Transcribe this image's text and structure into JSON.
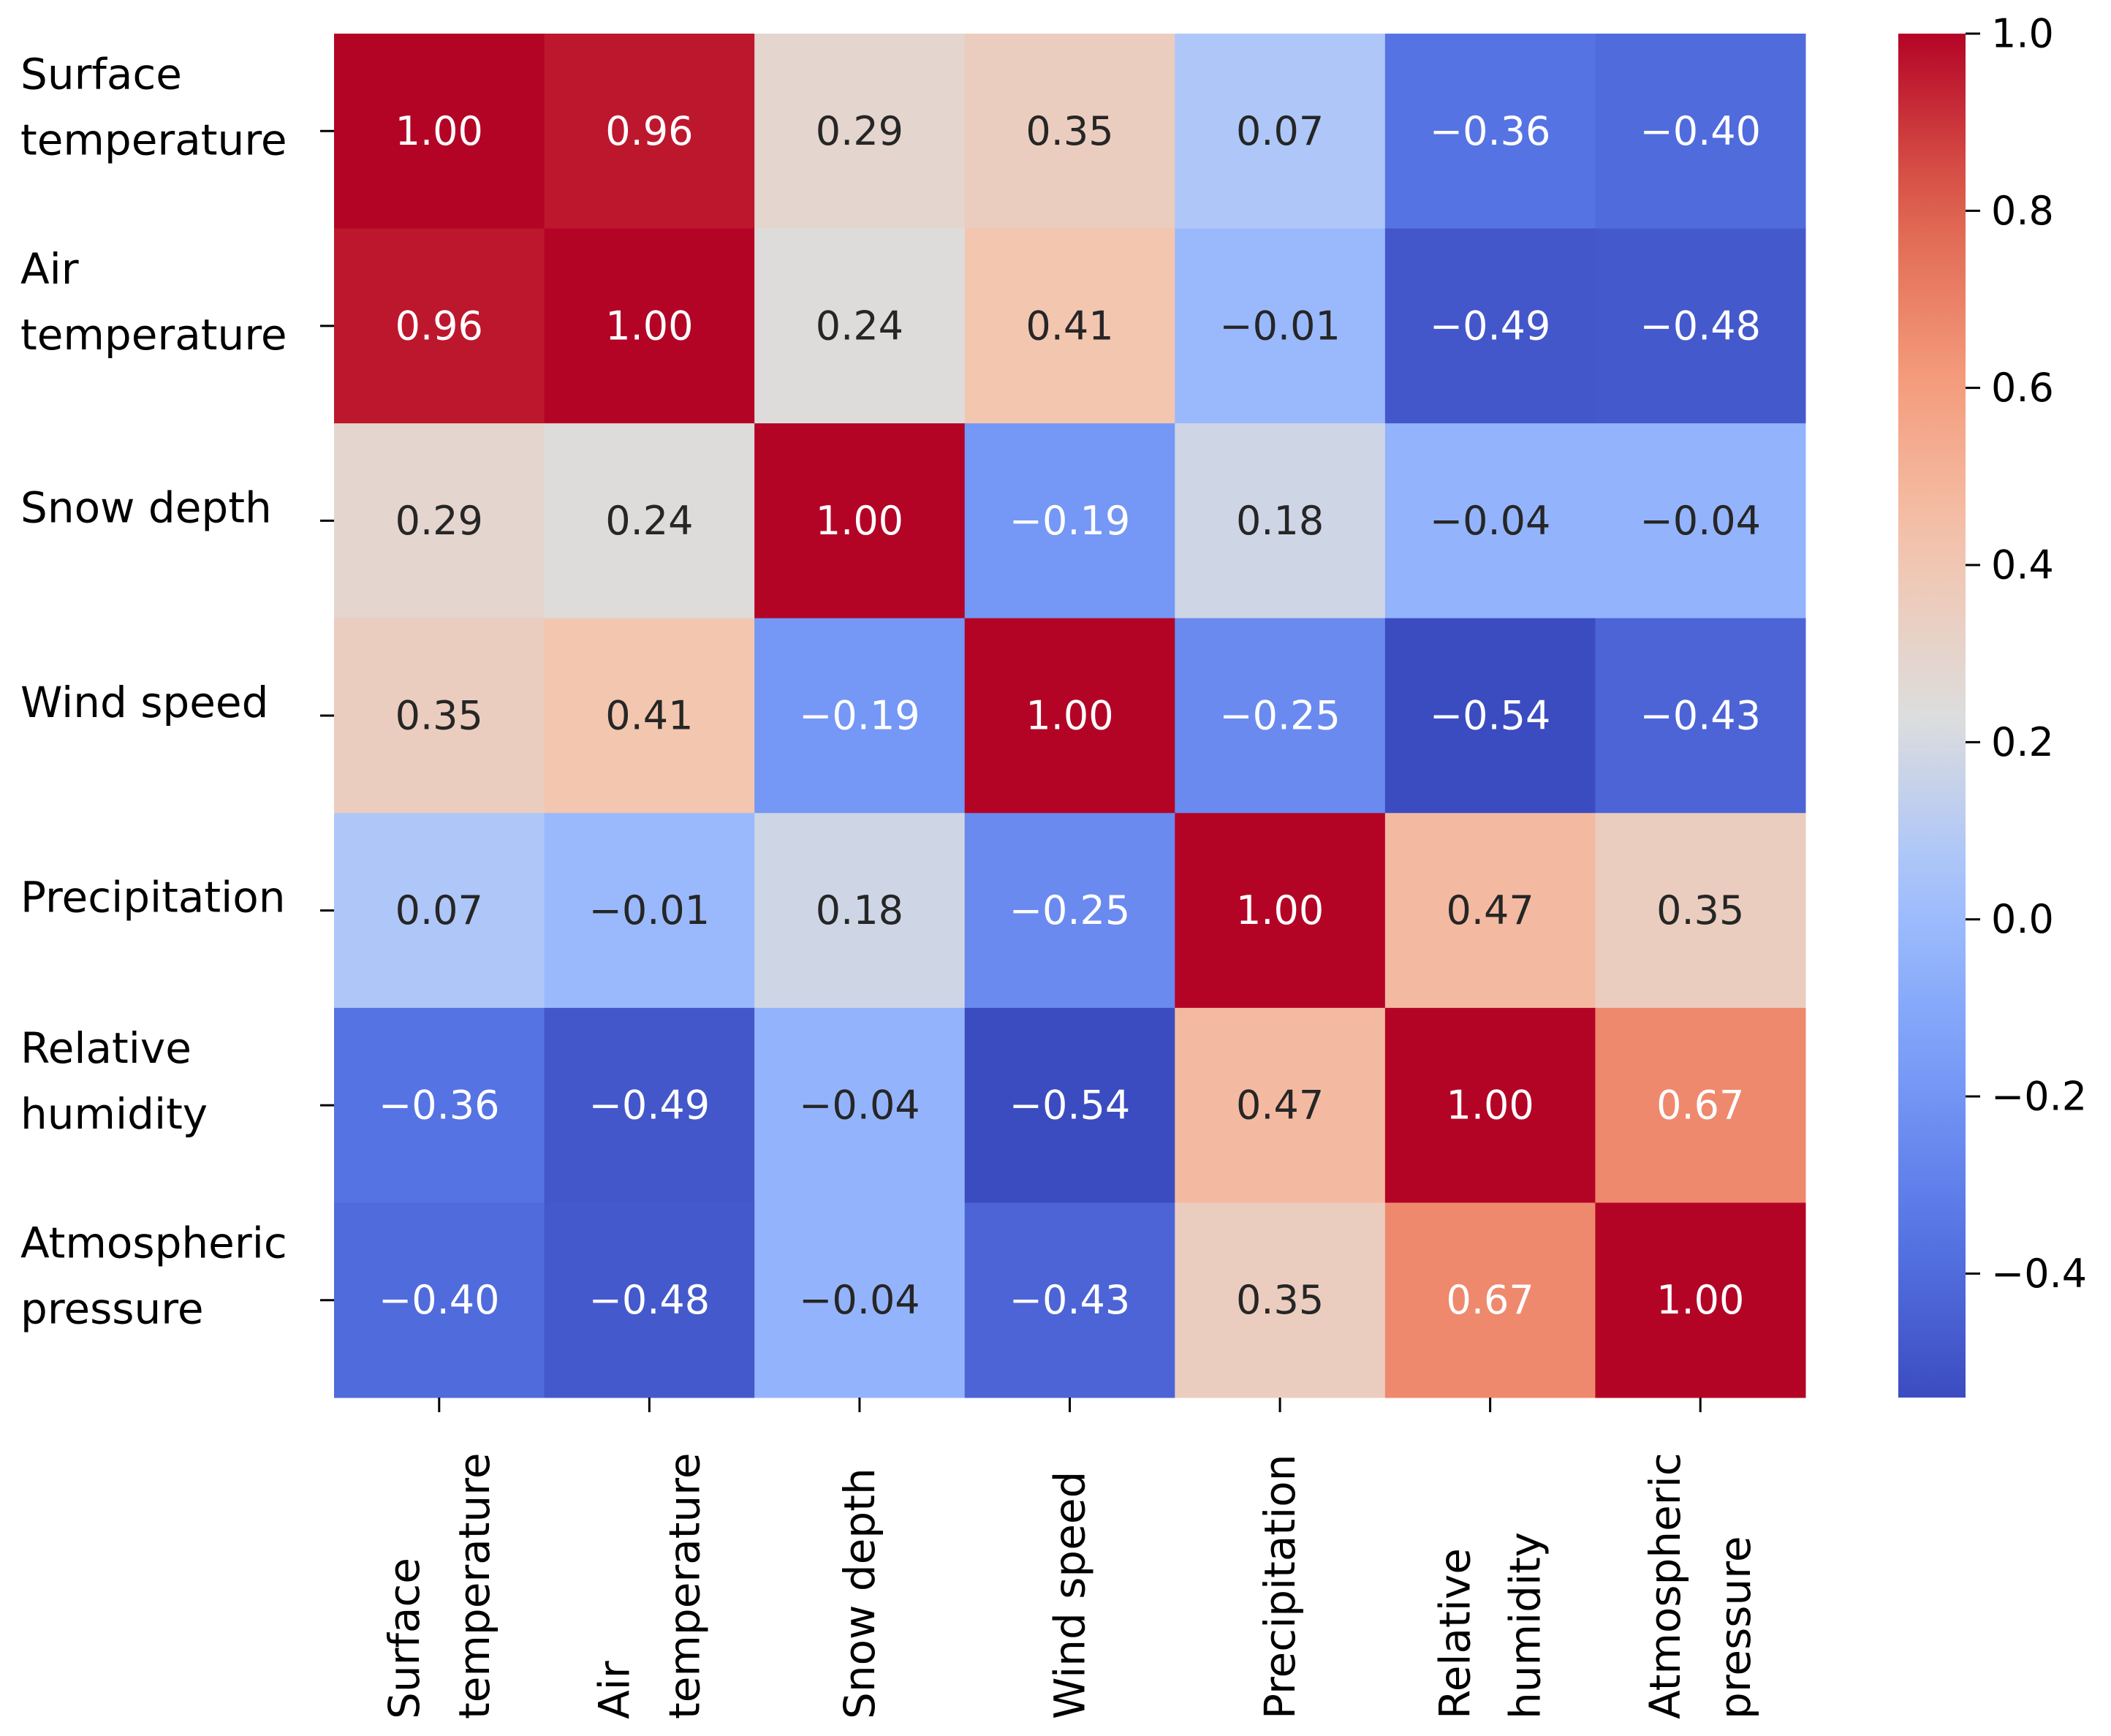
{
  "chart_data": {
    "type": "heatmap",
    "title": "",
    "xlabel": "",
    "ylabel": "",
    "colormap": "coolwarm",
    "row_labels": [
      [
        "Surface",
        "temperature"
      ],
      [
        "Air",
        "temperature"
      ],
      [
        "Snow depth"
      ],
      [
        "Wind speed"
      ],
      [
        "Precipitation"
      ],
      [
        "Relative",
        "humidity"
      ],
      [
        "Atmospheric",
        "pressure"
      ]
    ],
    "col_labels": [
      [
        "Surface",
        "temperature"
      ],
      [
        "Air",
        "temperature"
      ],
      [
        "Snow depth"
      ],
      [
        "Wind speed"
      ],
      [
        "Precipitation"
      ],
      [
        "Relative",
        "humidity"
      ],
      [
        "Atmospheric",
        "pressure"
      ]
    ],
    "values": [
      [
        1.0,
        0.96,
        0.29,
        0.35,
        0.07,
        -0.36,
        -0.4
      ],
      [
        0.96,
        1.0,
        0.24,
        0.41,
        -0.01,
        -0.49,
        -0.48
      ],
      [
        0.29,
        0.24,
        1.0,
        -0.19,
        0.18,
        -0.04,
        -0.04
      ],
      [
        0.35,
        0.41,
        -0.19,
        1.0,
        -0.25,
        -0.54,
        -0.43
      ],
      [
        0.07,
        -0.01,
        0.18,
        -0.25,
        1.0,
        0.47,
        0.35
      ],
      [
        -0.36,
        -0.49,
        -0.04,
        -0.54,
        0.47,
        1.0,
        0.67
      ],
      [
        -0.4,
        -0.48,
        -0.04,
        -0.43,
        0.35,
        0.67,
        1.0
      ]
    ],
    "annotation_format": "0.00",
    "colorbar": {
      "range": [
        -0.54,
        1.0
      ],
      "ticks": [
        1.0,
        0.8,
        0.6,
        0.4,
        0.2,
        0.0,
        -0.2,
        -0.4
      ],
      "tick_labels": [
        "1.0",
        "0.8",
        "0.6",
        "0.4",
        "0.2",
        "0.0",
        "−0.2",
        "−0.4"
      ],
      "placement": "right"
    }
  }
}
